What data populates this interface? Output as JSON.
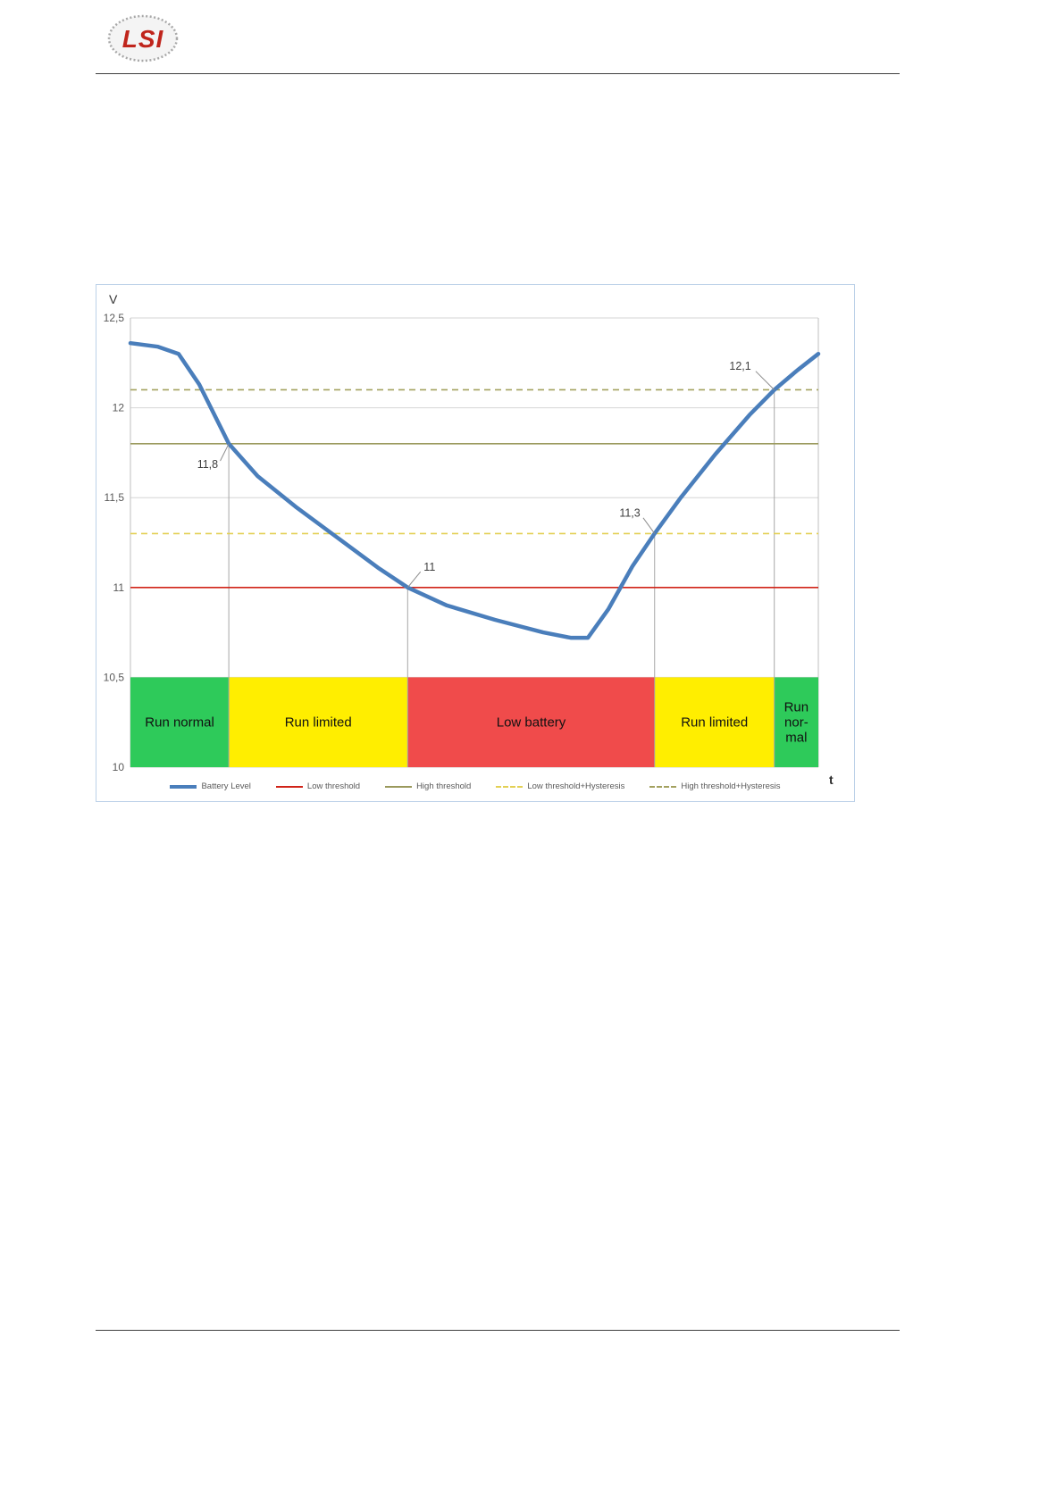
{
  "page": {
    "logo_text": "LSI"
  },
  "chart_data": {
    "type": "line",
    "title": "",
    "xlabel": "t",
    "ylabel": "V",
    "ylim": [
      10,
      12.5
    ],
    "grid": true,
    "legend_position": "bottom",
    "yticks": [
      {
        "value": 12.5,
        "label": "12,5"
      },
      {
        "value": 12,
        "label": "12"
      },
      {
        "value": 11.5,
        "label": "11,5"
      },
      {
        "value": 11,
        "label": "11"
      },
      {
        "value": 10.5,
        "label": "10,5"
      },
      {
        "value": 10,
        "label": "10"
      }
    ],
    "series": [
      {
        "name": "Battery Level",
        "color": "#4a7ebb",
        "points": [
          [
            0.0,
            12.36
          ],
          [
            0.04,
            12.34
          ],
          [
            0.07,
            12.3
          ],
          [
            0.1,
            12.13
          ],
          [
            0.143,
            11.8
          ],
          [
            0.185,
            11.62
          ],
          [
            0.24,
            11.45
          ],
          [
            0.3,
            11.28
          ],
          [
            0.36,
            11.11
          ],
          [
            0.403,
            11.0
          ],
          [
            0.46,
            10.9
          ],
          [
            0.53,
            10.82
          ],
          [
            0.6,
            10.75
          ],
          [
            0.64,
            10.72
          ],
          [
            0.665,
            10.72
          ],
          [
            0.695,
            10.88
          ],
          [
            0.73,
            11.12
          ],
          [
            0.762,
            11.3
          ],
          [
            0.8,
            11.5
          ],
          [
            0.85,
            11.74
          ],
          [
            0.9,
            11.96
          ],
          [
            0.936,
            12.1
          ],
          [
            0.97,
            12.21
          ],
          [
            1.0,
            12.3
          ]
        ]
      }
    ],
    "thresholds": [
      {
        "name": "Low threshold",
        "value": 11,
        "color": "#d02318",
        "dashed": false
      },
      {
        "name": "High threshold",
        "value": 11.8,
        "color": "#9a995c",
        "dashed": false
      },
      {
        "name": "Low threshold+Hysteresis",
        "value": 11.3,
        "color": "#e3d054",
        "dashed": true
      },
      {
        "name": "High threshold+Hysteresis",
        "value": 12.1,
        "color": "#a3a15f",
        "dashed": true
      }
    ],
    "zone_band": [
      10,
      10.5
    ],
    "zones": [
      {
        "label": "Run normal",
        "lines": [
          "Run normal"
        ],
        "from": 0.0,
        "to": 0.143,
        "color": "#2eca5a"
      },
      {
        "label": "Run limited",
        "lines": [
          "Run limited"
        ],
        "from": 0.143,
        "to": 0.403,
        "color": "#ffee00"
      },
      {
        "label": "Low battery",
        "lines": [
          "Low battery"
        ],
        "from": 0.403,
        "to": 0.762,
        "color": "#f04b4b"
      },
      {
        "label": "Run limited",
        "lines": [
          "Run limited"
        ],
        "from": 0.762,
        "to": 0.936,
        "color": "#ffee00"
      },
      {
        "label": "Run nor-mal",
        "lines": [
          "Run",
          "nor-",
          "mal"
        ],
        "from": 0.936,
        "to": 1.0,
        "color": "#2eca5a"
      }
    ],
    "transitions": [
      {
        "x": 0.143,
        "value": 11.8,
        "label": "11,8"
      },
      {
        "x": 0.403,
        "value": 11,
        "label": "11"
      },
      {
        "x": 0.762,
        "value": 11.3,
        "label": "11,3"
      },
      {
        "x": 0.936,
        "value": 12.1,
        "label": "12,1"
      }
    ],
    "legend": [
      {
        "label": "Battery Level",
        "color": "#4a7ebb",
        "style": "thick"
      },
      {
        "label": "Low threshold",
        "color": "#d02318",
        "style": "solid"
      },
      {
        "label": "High threshold",
        "color": "#9a995c",
        "style": "solid"
      },
      {
        "label": "Low threshold+Hysteresis",
        "color": "#e3d054",
        "style": "dashed"
      },
      {
        "label": "High threshold+Hysteresis",
        "color": "#a3a15f",
        "style": "dashed"
      }
    ]
  }
}
